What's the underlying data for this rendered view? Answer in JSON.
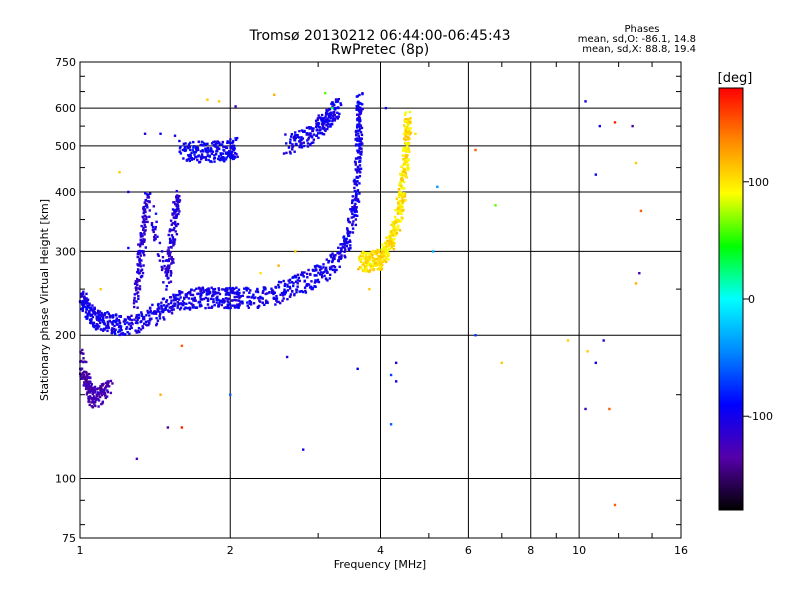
{
  "chart_data": {
    "type": "scatter",
    "title": "Tromsø 20130212 06:44:00-06:45:43",
    "subtitle": "RwPretec (8p)",
    "xlabel": "Frequency [MHz]",
    "ylabel": "Stationary phase Virtual Height [km]",
    "x_scale": "log",
    "y_scale": "log",
    "xlim": [
      1,
      16
    ],
    "ylim": [
      75,
      750
    ],
    "x_ticks": [
      1,
      2,
      4,
      6,
      8,
      10,
      16
    ],
    "y_ticks": [
      75,
      100,
      200,
      300,
      400,
      500,
      600,
      750
    ],
    "grid": true,
    "phase_stats": {
      "heading": "Phases",
      "line_o": "mean, sd,O: -86.1, 14.8",
      "line_x": "mean, sd,X:  88.8, 19.4"
    },
    "colorbar": {
      "label": "[deg]",
      "range": [
        -180,
        180
      ],
      "ticks": [
        100,
        0,
        -100
      ],
      "colors": [
        "#ff0000",
        "#ff8800",
        "#ffff00",
        "#00ff00",
        "#00ffff",
        "#0088ff",
        "#0000ff",
        "#5500aa",
        "#000000"
      ]
    },
    "traces": [
      {
        "phase": -100,
        "points": [
          [
            1.0,
            240
          ],
          [
            1.03,
            230
          ],
          [
            1.06,
            220
          ],
          [
            1.1,
            215
          ],
          [
            1.15,
            212
          ],
          [
            1.2,
            210
          ],
          [
            1.3,
            212
          ],
          [
            1.4,
            220
          ],
          [
            1.5,
            230
          ],
          [
            1.6,
            237
          ],
          [
            1.7,
            240
          ],
          [
            1.8,
            240
          ],
          [
            1.9,
            240
          ],
          [
            2.0,
            240
          ],
          [
            2.1,
            240
          ],
          [
            2.3,
            240
          ],
          [
            2.5,
            245
          ],
          [
            2.7,
            255
          ],
          [
            2.9,
            262
          ],
          [
            3.1,
            272
          ],
          [
            3.3,
            290
          ],
          [
            3.45,
            320
          ],
          [
            3.55,
            370
          ],
          [
            3.6,
            430
          ],
          [
            3.62,
            500
          ],
          [
            3.63,
            560
          ],
          [
            3.64,
            630
          ]
        ]
      },
      {
        "phase": -95,
        "points": [
          [
            1.6,
            490
          ],
          [
            1.7,
            486
          ],
          [
            1.8,
            485
          ],
          [
            1.9,
            487
          ],
          [
            2.0,
            490
          ],
          [
            2.05,
            495
          ]
        ]
      },
      {
        "phase": -100,
        "points": [
          [
            2.6,
            505
          ],
          [
            2.8,
            520
          ],
          [
            3.0,
            545
          ],
          [
            3.1,
            560
          ],
          [
            3.2,
            580
          ],
          [
            3.3,
            610
          ]
        ]
      },
      {
        "phase": 100,
        "points": [
          [
            3.65,
            288
          ],
          [
            3.75,
            285
          ],
          [
            3.9,
            286
          ],
          [
            4.0,
            290
          ],
          [
            4.1,
            300
          ],
          [
            4.2,
            315
          ],
          [
            4.3,
            340
          ],
          [
            4.4,
            380
          ],
          [
            4.45,
            420
          ],
          [
            4.5,
            480
          ],
          [
            4.52,
            530
          ],
          [
            4.55,
            570
          ]
        ]
      },
      {
        "phase": -130,
        "points": [
          [
            1.0,
            180
          ],
          [
            1.02,
            165
          ],
          [
            1.04,
            155
          ],
          [
            1.06,
            148
          ],
          [
            1.1,
            150
          ],
          [
            1.15,
            160
          ]
        ]
      },
      {
        "phase": -110,
        "points": [
          [
            1.3,
            240
          ],
          [
            1.32,
            280
          ],
          [
            1.34,
            330
          ],
          [
            1.36,
            390
          ],
          [
            1.5,
            260
          ],
          [
            1.52,
            300
          ],
          [
            1.55,
            350
          ],
          [
            1.58,
            390
          ]
        ]
      }
    ],
    "scatter_points": [
      {
        "x": 1.8,
        "y": 625,
        "phase": 110
      },
      {
        "x": 1.9,
        "y": 620,
        "phase": 110
      },
      {
        "x": 2.05,
        "y": 605,
        "phase": -120
      },
      {
        "x": 2.45,
        "y": 640,
        "phase": 120
      },
      {
        "x": 3.1,
        "y": 645,
        "phase": 60
      },
      {
        "x": 3.2,
        "y": 600,
        "phase": 30
      },
      {
        "x": 4.1,
        "y": 600,
        "phase": -100
      },
      {
        "x": 4.7,
        "y": 530,
        "phase": 100
      },
      {
        "x": 1.45,
        "y": 530,
        "phase": -100
      },
      {
        "x": 1.35,
        "y": 530,
        "phase": -110
      },
      {
        "x": 1.55,
        "y": 525,
        "phase": -100
      },
      {
        "x": 6.2,
        "y": 490,
        "phase": 150
      },
      {
        "x": 6.8,
        "y": 375,
        "phase": 60
      },
      {
        "x": 5.2,
        "y": 410,
        "phase": -40
      },
      {
        "x": 2.6,
        "y": 180,
        "phase": -110
      },
      {
        "x": 4.2,
        "y": 165,
        "phase": -70
      },
      {
        "x": 3.6,
        "y": 170,
        "phase": -90
      },
      {
        "x": 4.3,
        "y": 160,
        "phase": -100
      },
      {
        "x": 1.6,
        "y": 190,
        "phase": 150
      },
      {
        "x": 1.45,
        "y": 150,
        "phase": 120
      },
      {
        "x": 2.0,
        "y": 150,
        "phase": -60
      },
      {
        "x": 2.8,
        "y": 115,
        "phase": -100
      },
      {
        "x": 1.3,
        "y": 110,
        "phase": -130
      },
      {
        "x": 1.6,
        "y": 128,
        "phase": 170
      },
      {
        "x": 1.5,
        "y": 128,
        "phase": -140
      },
      {
        "x": 4.2,
        "y": 130,
        "phase": -60
      },
      {
        "x": 6.2,
        "y": 200,
        "phase": -70
      },
      {
        "x": 7.0,
        "y": 175,
        "phase": 110
      },
      {
        "x": 9.5,
        "y": 195,
        "phase": 110
      },
      {
        "x": 10.4,
        "y": 185,
        "phase": 110
      },
      {
        "x": 10.3,
        "y": 620,
        "phase": -100
      },
      {
        "x": 11.0,
        "y": 550,
        "phase": -100
      },
      {
        "x": 11.8,
        "y": 560,
        "phase": 170
      },
      {
        "x": 12.8,
        "y": 550,
        "phase": -140
      },
      {
        "x": 10.8,
        "y": 435,
        "phase": -100
      },
      {
        "x": 13.0,
        "y": 460,
        "phase": 110
      },
      {
        "x": 13.3,
        "y": 365,
        "phase": 150
      },
      {
        "x": 13.2,
        "y": 270,
        "phase": -130
      },
      {
        "x": 13.0,
        "y": 257,
        "phase": 120
      },
      {
        "x": 11.2,
        "y": 195,
        "phase": -100
      },
      {
        "x": 10.8,
        "y": 175,
        "phase": -100
      },
      {
        "x": 10.3,
        "y": 140,
        "phase": -120
      },
      {
        "x": 11.5,
        "y": 140,
        "phase": 150
      },
      {
        "x": 11.8,
        "y": 88,
        "phase": 150
      },
      {
        "x": 5.1,
        "y": 300,
        "phase": -30
      },
      {
        "x": 3.8,
        "y": 250,
        "phase": 110
      },
      {
        "x": 2.3,
        "y": 270,
        "phase": 100
      },
      {
        "x": 2.7,
        "y": 300,
        "phase": 110
      },
      {
        "x": 2.5,
        "y": 280,
        "phase": 120
      },
      {
        "x": 1.1,
        "y": 250,
        "phase": 110
      },
      {
        "x": 1.2,
        "y": 205,
        "phase": -80
      },
      {
        "x": 1.25,
        "y": 305,
        "phase": -90
      },
      {
        "x": 1.25,
        "y": 400,
        "phase": -100
      },
      {
        "x": 1.2,
        "y": 440,
        "phase": 110
      },
      {
        "x": 1.42,
        "y": 360,
        "phase": -80
      },
      {
        "x": 4.3,
        "y": 175,
        "phase": -110
      }
    ]
  }
}
